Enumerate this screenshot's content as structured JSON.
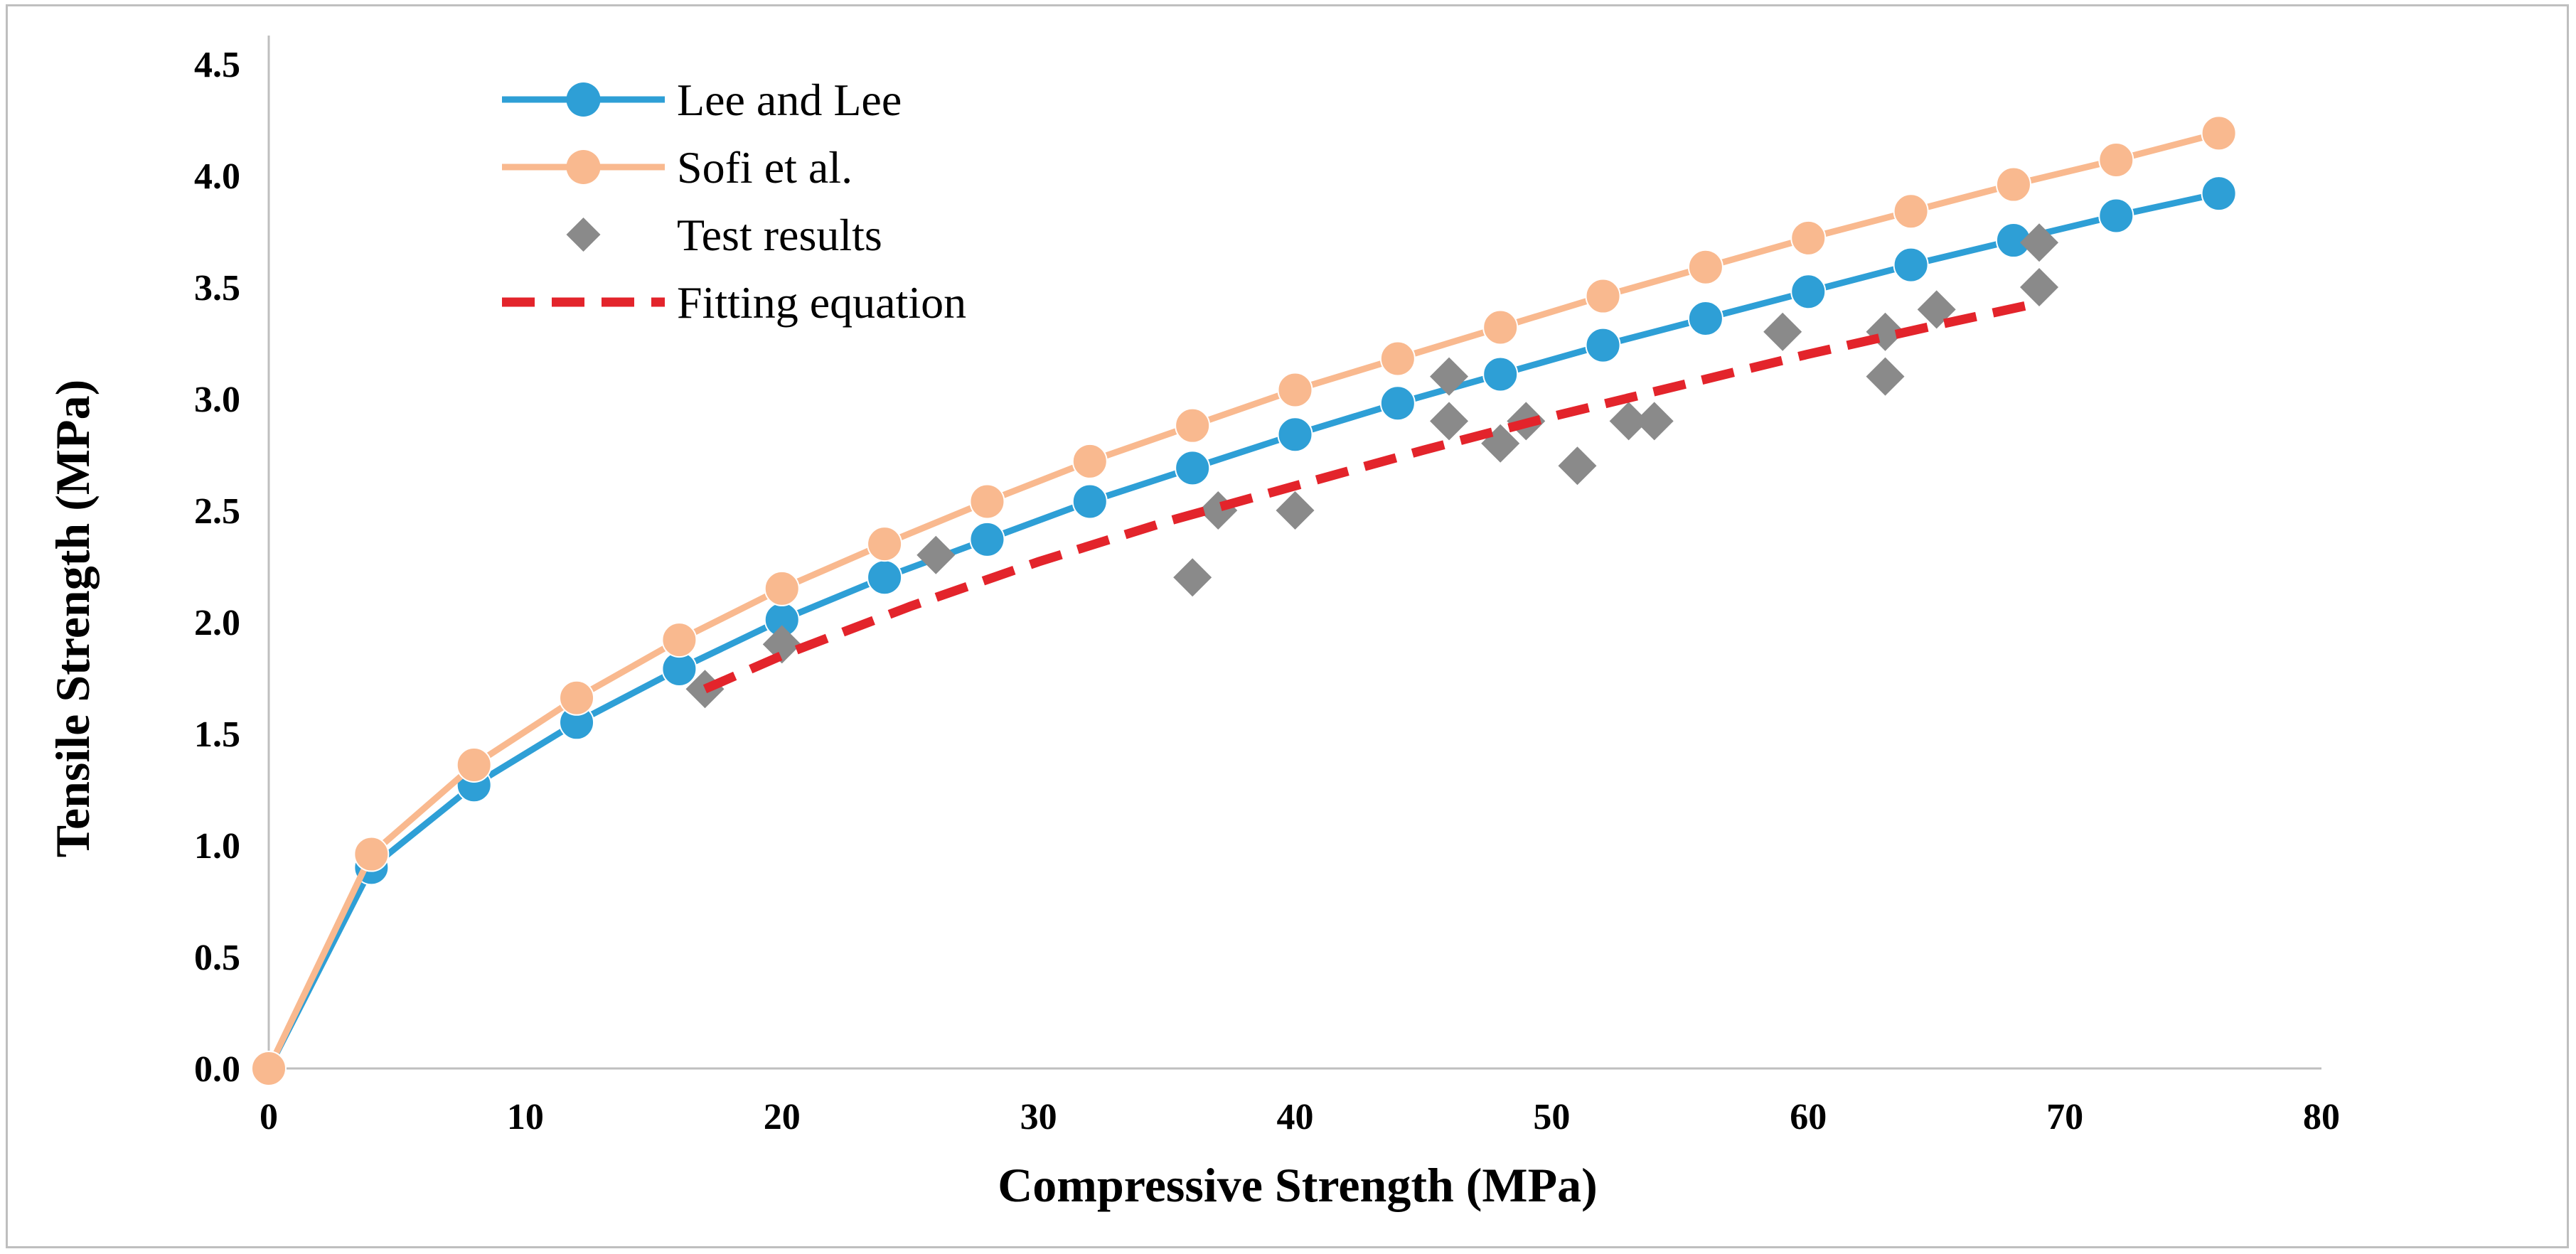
{
  "chart_data": {
    "type": "line",
    "title": "",
    "xlabel": "Compressive Strength (MPa)",
    "ylabel": "Tensile Strength (MPa)",
    "xlim": [
      0,
      80
    ],
    "ylim": [
      0,
      4.5
    ],
    "xticks": [
      0,
      10,
      20,
      30,
      40,
      50,
      60,
      70,
      80
    ],
    "xtick_labels": [
      "0",
      "10",
      "20",
      "30",
      "40",
      "50",
      "60",
      "70",
      "80"
    ],
    "yticks": [
      0,
      0.5,
      1.0,
      1.5,
      2.0,
      2.5,
      3.0,
      3.5,
      4.0,
      4.5
    ],
    "ytick_labels": [
      "0.0",
      "0.5",
      "1.0",
      "1.5",
      "2.0",
      "2.5",
      "3.0",
      "3.5",
      "4.0",
      "4.5"
    ],
    "grid": false,
    "legend_position": "top-left",
    "series": [
      {
        "name": "Lee and Lee",
        "kind": "line-marker",
        "color": "#2e9fd6",
        "x": [
          0,
          4,
          8,
          12,
          16,
          20,
          24,
          28,
          32,
          36,
          40,
          44,
          48,
          52,
          56,
          60,
          64,
          68,
          72,
          76
        ],
        "y": [
          0,
          0.9,
          1.27,
          1.55,
          1.79,
          2.01,
          2.2,
          2.37,
          2.54,
          2.69,
          2.84,
          2.98,
          3.11,
          3.24,
          3.36,
          3.48,
          3.6,
          3.71,
          3.82,
          3.92
        ]
      },
      {
        "name": "Sofi et al.",
        "kind": "line-marker",
        "color": "#f9b98f",
        "x": [
          0,
          4,
          8,
          12,
          16,
          20,
          24,
          28,
          32,
          36,
          40,
          44,
          48,
          52,
          56,
          60,
          64,
          68,
          72,
          76
        ],
        "y": [
          0,
          0.96,
          1.36,
          1.66,
          1.92,
          2.15,
          2.35,
          2.54,
          2.72,
          2.88,
          3.04,
          3.18,
          3.32,
          3.46,
          3.59,
          3.72,
          3.84,
          3.96,
          4.07,
          4.19
        ]
      },
      {
        "name": "Test results",
        "kind": "scatter",
        "color": "#8a8a8a",
        "x": [
          17,
          20,
          26,
          36,
          37,
          40,
          46,
          46,
          48,
          49,
          51,
          53,
          54,
          59,
          63,
          63,
          65,
          69,
          69
        ],
        "y": [
          1.7,
          1.9,
          2.3,
          2.2,
          2.5,
          2.5,
          3.1,
          2.9,
          2.8,
          2.9,
          2.7,
          2.9,
          2.9,
          3.3,
          3.1,
          3.3,
          3.4,
          3.5,
          3.7
        ]
      },
      {
        "name": "Fitting equation",
        "kind": "dashed-line",
        "color": "#e3242b",
        "x": [
          17,
          20,
          25,
          30,
          35,
          40,
          45,
          50,
          55,
          60,
          65,
          69
        ],
        "y": [
          1.7,
          1.85,
          2.07,
          2.27,
          2.45,
          2.61,
          2.77,
          2.92,
          3.06,
          3.2,
          3.33,
          3.43
        ]
      }
    ]
  }
}
